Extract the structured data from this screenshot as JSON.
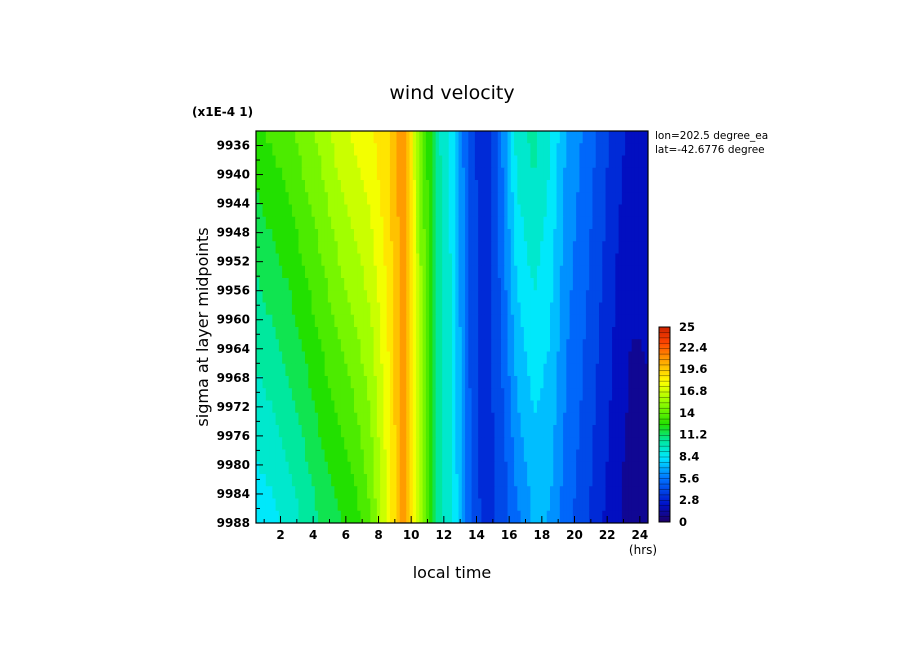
{
  "chart_data": {
    "type": "heatmap",
    "title": "wind velocity",
    "xlabel": "local time",
    "ylabel": "sigma at layer midpoints",
    "x_units": "(hrs)",
    "y_scale_note": "(x1E-4 1)",
    "annotations": [
      "lon=202.5 degree_ea",
      "lat=-42.6776 degree"
    ],
    "xlim": [
      0.5,
      24.5
    ],
    "ylim": [
      9988,
      9934
    ],
    "x_ticks": [
      "2",
      "4",
      "6",
      "8",
      "10",
      "12",
      "14",
      "16",
      "18",
      "20",
      "22",
      "24"
    ],
    "y_ticks": [
      "9936",
      "9940",
      "9944",
      "9948",
      "9952",
      "9956",
      "9960",
      "9964",
      "9968",
      "9972",
      "9976",
      "9980",
      "9984",
      "9988"
    ],
    "colorbar": {
      "min": 0,
      "max": 25,
      "tick_labels": [
        "0",
        "2.8",
        "5.6",
        "8.4",
        "11.2",
        "14",
        "16.8",
        "19.6",
        "22.4",
        "25"
      ]
    },
    "x_hours": [
      0.5,
      1.5,
      2.5,
      3.5,
      4.5,
      5.5,
      6.5,
      7.5,
      8.5,
      9.5,
      10.5,
      11.5,
      12.5,
      13.5,
      14.5,
      15.5,
      16.5,
      17.5,
      18.5,
      19.5,
      20.5,
      21.5,
      22.5,
      23.5,
      24.5
    ],
    "sigma_levels": [
      9934,
      9988
    ],
    "values": [
      [
        13.2,
        13.8,
        14.3,
        15.2,
        16.0,
        17.2,
        18.0,
        18.6,
        19.6,
        21.6,
        16.0,
        11.0,
        9.0,
        5.0,
        3.2,
        6.0,
        10.0,
        10.8,
        9.6,
        7.2,
        6.2,
        5.0,
        3.6,
        2.8,
        2.5
      ],
      [
        8.6,
        9.0,
        9.8,
        10.6,
        11.6,
        12.2,
        13.0,
        14.4,
        17.6,
        21.4,
        16.4,
        11.2,
        9.6,
        5.6,
        3.6,
        4.4,
        6.0,
        7.4,
        7.2,
        5.6,
        4.6,
        3.4,
        2.4,
        1.4,
        1.8
      ]
    ]
  }
}
